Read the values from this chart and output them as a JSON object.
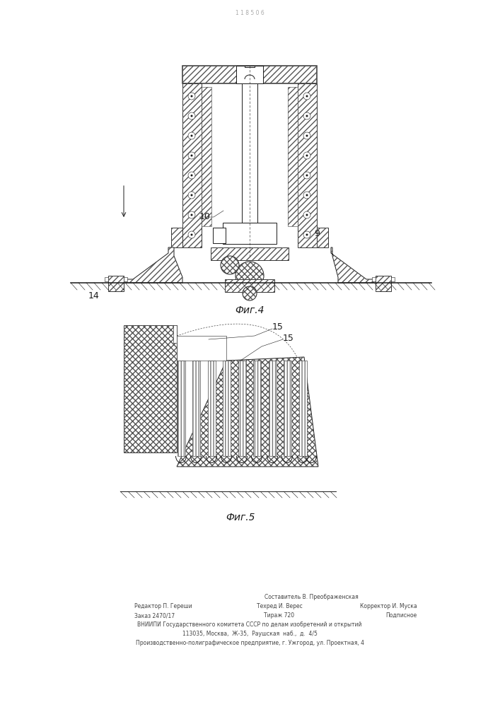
{
  "page_width": 7.07,
  "page_height": 10.0,
  "bg_color": "#ffffff",
  "fig4_caption": "Фиг.4",
  "fig5_caption": "Фиг.5",
  "label_9": "9",
  "label_10": "10",
  "label_14": "14",
  "label_15a": "15",
  "label_15b": "15",
  "header_text": "1 1 8 5 0 6",
  "footer_line1_left": "Редактор П. Гереши",
  "footer_line1_center": "Техред И. Верес",
  "footer_line1_right": "Корректор И. Муска",
  "footer_line0_center": "Составитель В. Преображенская",
  "footer_line2_left": "Заказ 2470/17",
  "footer_line2_center": "Тираж 720",
  "footer_line2_right": "Подписное",
  "footer_line3": "ВНИИПИ Государственного комитета СССР по делам изобретений и открытий",
  "footer_line4": "113035, Москва,  Ж-35,  Раушская  наб.,  д.  4/5",
  "footer_line5": "Производственно-полиграфическое предприятие, г. Ужгород, ул. Проектная, 4",
  "line_color": "#1a1a1a",
  "hatch_color": "#555555"
}
